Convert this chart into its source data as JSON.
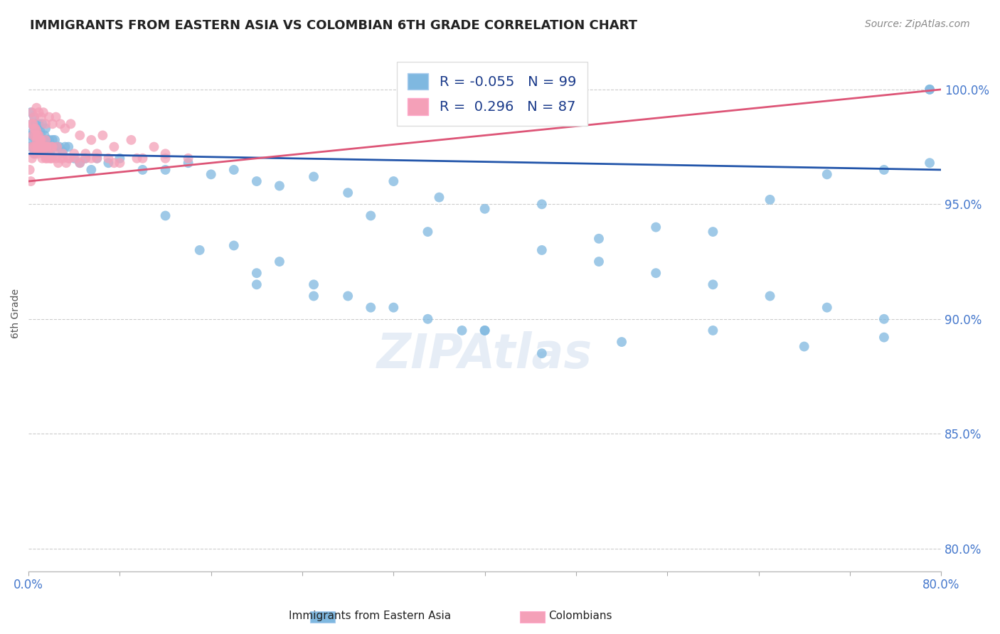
{
  "title": "IMMIGRANTS FROM EASTERN ASIA VS COLOMBIAN 6TH GRADE CORRELATION CHART",
  "source": "Source: ZipAtlas.com",
  "ylabel": "6th Grade",
  "xlim": [
    0.0,
    80.0
  ],
  "ylim": [
    79.0,
    101.5
  ],
  "yticks": [
    80.0,
    85.0,
    90.0,
    95.0,
    100.0
  ],
  "ytick_labels": [
    "80.0%",
    "85.0%",
    "90.0%",
    "95.0%",
    "100.0%"
  ],
  "legend_label1": "Immigrants from Eastern Asia",
  "legend_label2": "Colombians",
  "r1": -0.055,
  "n1": 99,
  "r2": 0.296,
  "n2": 87,
  "color_blue": "#7fb8e0",
  "color_pink": "#f4a0b8",
  "color_blue_line": "#2255aa",
  "color_pink_line": "#dd5577",
  "color_axis_label": "#4477cc",
  "blue_x": [
    0.1,
    0.2,
    0.2,
    0.3,
    0.3,
    0.4,
    0.4,
    0.5,
    0.5,
    0.6,
    0.6,
    0.7,
    0.7,
    0.8,
    0.8,
    0.9,
    0.9,
    1.0,
    1.0,
    1.1,
    1.1,
    1.2,
    1.2,
    1.3,
    1.3,
    1.4,
    1.5,
    1.5,
    1.6,
    1.7,
    1.8,
    1.9,
    2.0,
    2.1,
    2.2,
    2.3,
    2.5,
    2.7,
    3.0,
    3.2,
    3.5,
    4.0,
    4.5,
    5.0,
    5.5,
    6.0,
    7.0,
    8.0,
    10.0,
    12.0,
    14.0,
    16.0,
    18.0,
    20.0,
    22.0,
    25.0,
    28.0,
    32.0,
    36.0,
    40.0,
    45.0,
    50.0,
    55.0,
    60.0,
    65.0,
    70.0,
    75.0,
    79.0,
    30.0,
    35.0,
    40.0,
    18.0,
    22.0,
    28.0,
    12.0,
    15.0,
    20.0,
    25.0,
    32.0,
    38.0,
    45.0,
    52.0,
    60.0,
    68.0,
    75.0,
    20.0,
    25.0,
    30.0,
    35.0,
    40.0,
    45.0,
    50.0,
    55.0,
    60.0,
    65.0,
    70.0,
    75.0,
    79.0,
    79.0
  ],
  "blue_y": [
    97.5,
    98.0,
    99.0,
    98.5,
    97.8,
    98.2,
    97.5,
    98.8,
    97.2,
    98.5,
    97.8,
    98.0,
    97.3,
    98.3,
    97.6,
    97.9,
    98.5,
    97.8,
    98.2,
    97.5,
    98.0,
    97.3,
    98.5,
    97.8,
    97.2,
    98.0,
    97.5,
    98.3,
    97.8,
    97.5,
    97.8,
    97.3,
    97.5,
    97.8,
    97.5,
    97.8,
    97.5,
    97.5,
    97.3,
    97.5,
    97.5,
    97.0,
    96.8,
    97.0,
    96.5,
    97.0,
    96.8,
    97.0,
    96.5,
    96.5,
    96.8,
    96.3,
    96.5,
    96.0,
    95.8,
    96.2,
    95.5,
    96.0,
    95.3,
    94.8,
    95.0,
    93.5,
    94.0,
    93.8,
    95.2,
    96.3,
    96.5,
    96.8,
    94.5,
    93.8,
    89.5,
    93.2,
    92.5,
    91.0,
    94.5,
    93.0,
    92.0,
    91.5,
    90.5,
    89.5,
    88.5,
    89.0,
    89.5,
    88.8,
    89.2,
    91.5,
    91.0,
    90.5,
    90.0,
    89.5,
    93.0,
    92.5,
    92.0,
    91.5,
    91.0,
    90.5,
    90.0,
    100.0,
    100.0
  ],
  "pink_x": [
    0.1,
    0.2,
    0.3,
    0.3,
    0.4,
    0.5,
    0.5,
    0.6,
    0.6,
    0.7,
    0.7,
    0.8,
    0.8,
    0.9,
    0.9,
    1.0,
    1.0,
    1.1,
    1.1,
    1.2,
    1.3,
    1.4,
    1.5,
    1.5,
    1.6,
    1.7,
    1.8,
    2.0,
    2.0,
    2.2,
    2.4,
    2.6,
    2.8,
    3.0,
    3.3,
    3.6,
    4.0,
    4.5,
    5.0,
    5.5,
    6.0,
    7.0,
    8.0,
    10.0,
    12.0,
    14.0,
    0.3,
    0.5,
    0.7,
    0.9,
    1.1,
    1.3,
    1.5,
    1.8,
    2.1,
    2.4,
    2.8,
    3.2,
    3.7,
    4.5,
    5.5,
    6.5,
    7.5,
    9.0,
    11.0,
    0.4,
    0.6,
    0.8,
    1.0,
    1.3,
    1.6,
    2.0,
    2.5,
    3.0,
    3.5,
    4.2,
    5.0,
    6.0,
    7.5,
    9.5,
    12.0,
    0.3,
    0.5,
    0.8,
    1.2,
    1.6,
    2.1
  ],
  "pink_y": [
    96.5,
    96.0,
    97.5,
    98.5,
    98.0,
    97.2,
    98.3,
    97.5,
    98.0,
    97.8,
    98.2,
    97.5,
    97.8,
    97.3,
    98.0,
    97.5,
    97.8,
    97.5,
    97.8,
    97.3,
    97.5,
    97.5,
    97.0,
    97.8,
    97.5,
    97.2,
    97.0,
    97.5,
    97.0,
    97.2,
    97.0,
    96.8,
    97.0,
    97.0,
    96.8,
    97.0,
    97.2,
    96.8,
    97.0,
    97.0,
    97.2,
    97.0,
    96.8,
    97.0,
    97.2,
    97.0,
    99.0,
    98.8,
    99.2,
    99.0,
    98.8,
    99.0,
    98.5,
    98.8,
    98.5,
    98.8,
    98.5,
    98.3,
    98.5,
    98.0,
    97.8,
    98.0,
    97.5,
    97.8,
    97.5,
    98.5,
    98.3,
    98.0,
    97.8,
    97.5,
    97.5,
    97.0,
    97.5,
    97.2,
    97.0,
    97.0,
    97.2,
    97.0,
    96.8,
    97.0,
    97.0,
    97.0,
    97.5,
    97.2,
    97.0,
    97.0,
    97.5
  ]
}
